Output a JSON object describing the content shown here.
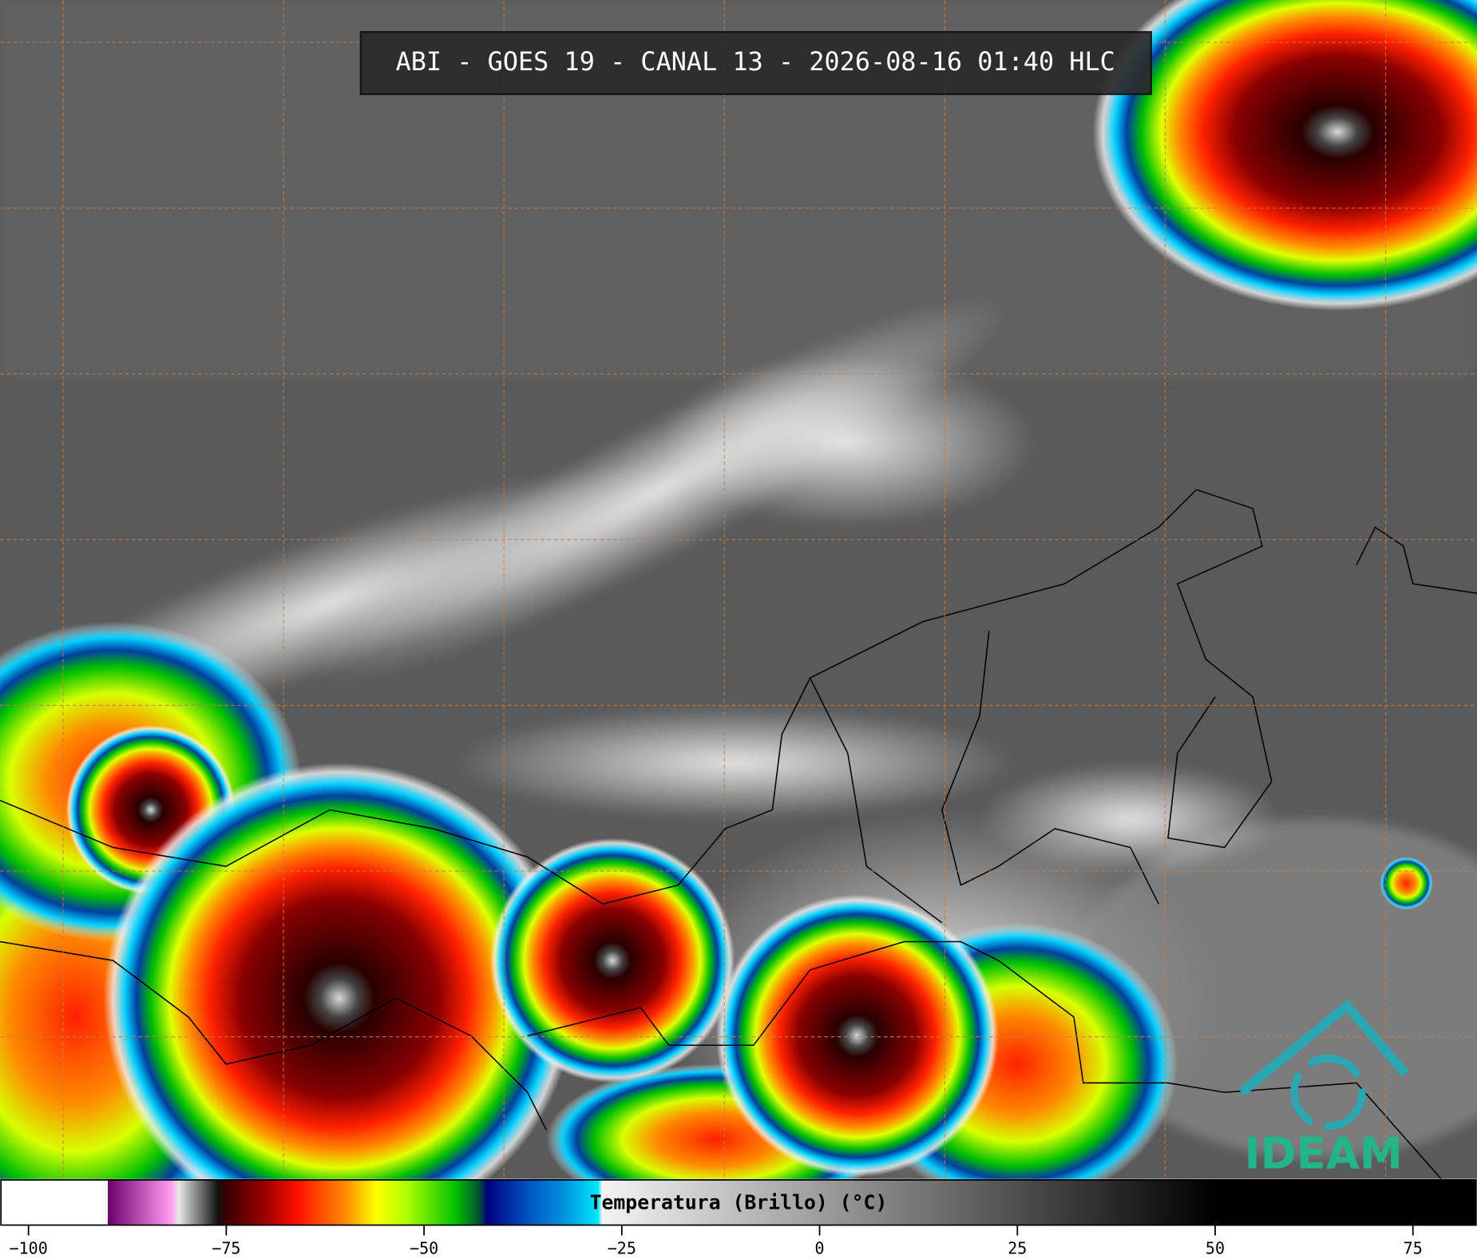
{
  "chart_data": {
    "type": "colorbar",
    "title": "ABI - GOES 19 - CANAL 13 - 2026-08-16 01:40 HLC",
    "colorbar_label": "Temperatura (Brillo) (°C)",
    "logo": "IDEAM",
    "xlim": [
      -103.6,
      83.1
    ],
    "xticks": [
      {
        "value": -100,
        "label": "−100"
      },
      {
        "value": -75,
        "label": "−75"
      },
      {
        "value": -50,
        "label": "−50"
      },
      {
        "value": -25,
        "label": "−25"
      },
      0,
      25,
      50,
      75
    ],
    "colormap": [
      {
        "value": -103.6,
        "color": "#ffffff"
      },
      {
        "value": -90,
        "color": "#ffffff"
      },
      {
        "value": -90,
        "color": "#6a006a"
      },
      {
        "value": -82,
        "color": "#ff9cf0"
      },
      {
        "value": -81,
        "color": "#e8e8e8"
      },
      {
        "value": -76,
        "color": "#101010"
      },
      {
        "value": -75,
        "color": "#3a0000"
      },
      {
        "value": -70,
        "color": "#a00000"
      },
      {
        "value": -66,
        "color": "#ff1000"
      },
      {
        "value": -60,
        "color": "#ff8a00"
      },
      {
        "value": -56,
        "color": "#ffff00"
      },
      {
        "value": -52,
        "color": "#a8ff00"
      },
      {
        "value": -46,
        "color": "#00c000"
      },
      {
        "value": -43,
        "color": "#005030"
      },
      {
        "value": -42,
        "color": "#000080"
      },
      {
        "value": -37,
        "color": "#0050c0"
      },
      {
        "value": -32,
        "color": "#0098e0"
      },
      {
        "value": -28,
        "color": "#00e8ff"
      },
      {
        "value": -27.5,
        "color": "#f4f4f4"
      },
      {
        "value": 50,
        "color": "#000000"
      },
      {
        "value": 83.1,
        "color": "#000000"
      }
    ]
  }
}
